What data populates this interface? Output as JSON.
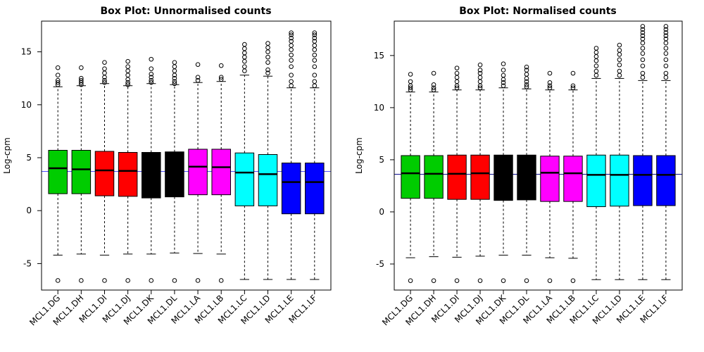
{
  "chart_data": [
    {
      "type": "boxplot",
      "title": "Box Plot: Unnormalised counts",
      "ylabel": "Log-cpm",
      "yticks": [
        -5,
        0,
        5,
        10,
        15
      ],
      "ylim": [
        -7.5,
        17.9
      ],
      "reference_line": 3.7,
      "reference_color": "#4d4dff",
      "categories": [
        "MCL1.DG",
        "MCL1.DH",
        "MCL1.DI",
        "MCL1.DJ",
        "MCL1.DK",
        "MCL1.DL",
        "MCL1.LA",
        "MCL1.LB",
        "MCL1.LC",
        "MCL1.LD",
        "MCL1.LE",
        "MCL1.LF"
      ],
      "colors": [
        "#00cc00",
        "#00cc00",
        "#ff0000",
        "#ff0000",
        "#000000",
        "#000000",
        "#ff00ff",
        "#ff00ff",
        "#00ffff",
        "#00ffff",
        "#0000ff",
        "#0000ff"
      ],
      "median_colors": [
        "#000000",
        "#000000",
        "#000000",
        "#000000",
        "#000000",
        "#000000",
        "#000000",
        "#000000",
        "#000000",
        "#000000",
        "#000000",
        "#000000"
      ],
      "boxes": [
        {
          "lower_whisker": -4.2,
          "q1": 1.6,
          "median": 4.0,
          "q3": 5.7,
          "upper_whisker": 11.7,
          "outliers": [
            -6.6,
            11.9,
            12.1,
            12.3,
            12.8,
            13.5
          ]
        },
        {
          "lower_whisker": -4.1,
          "q1": 1.6,
          "median": 3.9,
          "q3": 5.7,
          "upper_whisker": 11.8,
          "outliers": [
            -6.6,
            11.9,
            12.1,
            12.3,
            12.5,
            13.5
          ]
        },
        {
          "lower_whisker": -4.2,
          "q1": 1.4,
          "median": 3.8,
          "q3": 5.6,
          "upper_whisker": 12.0,
          "outliers": [
            -6.6,
            12.1,
            12.3,
            12.6,
            13.0,
            13.4,
            14.0
          ]
        },
        {
          "lower_whisker": -4.1,
          "q1": 1.35,
          "median": 3.75,
          "q3": 5.5,
          "upper_whisker": 11.8,
          "outliers": [
            -6.6,
            11.9,
            12.1,
            12.4,
            12.8,
            13.2,
            13.6,
            14.1
          ]
        },
        {
          "lower_whisker": -4.1,
          "q1": 1.2,
          "median": 3.6,
          "q3": 5.5,
          "upper_whisker": 12.0,
          "outliers": [
            -6.6,
            12.1,
            12.3,
            12.6,
            12.9,
            13.4,
            14.3
          ]
        },
        {
          "lower_whisker": -4.0,
          "q1": 1.3,
          "median": 3.65,
          "q3": 5.55,
          "upper_whisker": 11.9,
          "outliers": [
            -6.6,
            12.0,
            12.2,
            12.5,
            12.8,
            13.2,
            13.6,
            14.0
          ]
        },
        {
          "lower_whisker": -4.05,
          "q1": 1.5,
          "median": 4.15,
          "q3": 5.8,
          "upper_whisker": 12.1,
          "outliers": [
            -6.6,
            12.3,
            12.6,
            13.8
          ]
        },
        {
          "lower_whisker": -4.1,
          "q1": 1.5,
          "median": 4.1,
          "q3": 5.8,
          "upper_whisker": 12.2,
          "outliers": [
            -6.6,
            12.4,
            12.6,
            13.7
          ]
        },
        {
          "lower_whisker": -6.5,
          "q1": 0.45,
          "median": 3.6,
          "q3": 5.45,
          "upper_whisker": 12.8,
          "outliers": [
            13.2,
            13.6,
            14.1,
            14.5,
            14.9,
            15.3,
            15.7
          ]
        },
        {
          "lower_whisker": -6.5,
          "q1": 0.45,
          "median": 3.45,
          "q3": 5.3,
          "upper_whisker": 12.7,
          "outliers": [
            13.0,
            13.3,
            14.0,
            14.5,
            15.0,
            15.4,
            15.8
          ]
        },
        {
          "lower_whisker": -6.5,
          "q1": -0.3,
          "median": 2.7,
          "q3": 4.5,
          "upper_whisker": 11.6,
          "outliers": [
            11.8,
            12.2,
            12.8,
            13.6,
            14.2,
            14.7,
            15.2,
            15.6,
            16.0,
            16.3,
            16.6,
            16.8
          ]
        },
        {
          "lower_whisker": -6.5,
          "q1": -0.3,
          "median": 2.7,
          "q3": 4.5,
          "upper_whisker": 11.6,
          "outliers": [
            11.8,
            12.2,
            12.8,
            13.6,
            14.2,
            14.7,
            15.2,
            15.6,
            16.0,
            16.3,
            16.6,
            16.8
          ]
        }
      ]
    },
    {
      "type": "boxplot",
      "title": "Box Plot: Normalised counts",
      "ylabel": "Log-cpm",
      "yticks": [
        -5,
        0,
        5,
        10,
        15
      ],
      "ylim": [
        -7.5,
        18.3
      ],
      "reference_line": 3.6,
      "reference_color": "#00008b",
      "categories": [
        "MCL1.DG",
        "MCL1.DH",
        "MCL1.DI",
        "MCL1.DJ",
        "MCL1.DK",
        "MCL1.DL",
        "MCL1.LA",
        "MCL1.LB",
        "MCL1.LC",
        "MCL1.LD",
        "MCL1.LE",
        "MCL1.LF"
      ],
      "colors": [
        "#00cc00",
        "#00cc00",
        "#ff0000",
        "#ff0000",
        "#000000",
        "#000000",
        "#ff00ff",
        "#ff00ff",
        "#00ffff",
        "#00ffff",
        "#0000ff",
        "#0000ff"
      ],
      "median_colors": [
        "#000000",
        "#000000",
        "#000000",
        "#000000",
        "#000000",
        "#000000",
        "#000000",
        "#000000",
        "#000000",
        "#000000",
        "#000000",
        "#000000"
      ],
      "boxes": [
        {
          "lower_whisker": -4.4,
          "q1": 1.3,
          "median": 3.7,
          "q3": 5.4,
          "upper_whisker": 11.5,
          "outliers": [
            -6.6,
            11.7,
            11.9,
            12.1,
            12.5,
            13.2
          ]
        },
        {
          "lower_whisker": -4.3,
          "q1": 1.3,
          "median": 3.65,
          "q3": 5.4,
          "upper_whisker": 11.5,
          "outliers": [
            -6.6,
            11.7,
            11.9,
            12.2,
            13.3
          ]
        },
        {
          "lower_whisker": -4.35,
          "q1": 1.2,
          "median": 3.65,
          "q3": 5.45,
          "upper_whisker": 11.7,
          "outliers": [
            -6.6,
            11.9,
            12.1,
            12.5,
            12.9,
            13.3,
            13.8
          ]
        },
        {
          "lower_whisker": -4.25,
          "q1": 1.2,
          "median": 3.7,
          "q3": 5.45,
          "upper_whisker": 11.7,
          "outliers": [
            -6.6,
            11.9,
            12.1,
            12.5,
            12.9,
            13.3,
            13.6,
            14.1
          ]
        },
        {
          "lower_whisker": -4.15,
          "q1": 1.1,
          "median": 3.6,
          "q3": 5.45,
          "upper_whisker": 11.9,
          "outliers": [
            -6.6,
            12.1,
            12.4,
            12.7,
            13.1,
            13.6,
            14.2
          ]
        },
        {
          "lower_whisker": -4.15,
          "q1": 1.15,
          "median": 3.65,
          "q3": 5.45,
          "upper_whisker": 11.8,
          "outliers": [
            -6.6,
            12.0,
            12.2,
            12.5,
            12.8,
            13.2,
            13.6,
            13.9
          ]
        },
        {
          "lower_whisker": -4.4,
          "q1": 1.0,
          "median": 3.75,
          "q3": 5.35,
          "upper_whisker": 11.7,
          "outliers": [
            -6.6,
            11.9,
            12.1,
            12.4,
            13.3
          ]
        },
        {
          "lower_whisker": -4.45,
          "q1": 1.0,
          "median": 3.7,
          "q3": 5.35,
          "upper_whisker": 11.7,
          "outliers": [
            -6.6,
            11.9,
            12.1,
            13.3
          ]
        },
        {
          "lower_whisker": -6.5,
          "q1": 0.5,
          "median": 3.55,
          "q3": 5.45,
          "upper_whisker": 12.8,
          "outliers": [
            13.1,
            13.5,
            14.0,
            14.5,
            14.9,
            15.3,
            15.7
          ]
        },
        {
          "lower_whisker": -6.5,
          "q1": 0.55,
          "median": 3.55,
          "q3": 5.45,
          "upper_whisker": 12.8,
          "outliers": [
            13.1,
            13.5,
            14.1,
            14.6,
            15.1,
            15.5,
            16.0
          ]
        },
        {
          "lower_whisker": -6.5,
          "q1": 0.6,
          "median": 3.55,
          "q3": 5.4,
          "upper_whisker": 12.6,
          "outliers": [
            12.9,
            13.3,
            14.0,
            14.6,
            15.2,
            15.7,
            16.2,
            16.6,
            16.9,
            17.2,
            17.5,
            17.8
          ]
        },
        {
          "lower_whisker": -6.5,
          "q1": 0.6,
          "median": 3.55,
          "q3": 5.4,
          "upper_whisker": 12.6,
          "outliers": [
            12.9,
            13.3,
            14.0,
            14.6,
            15.2,
            15.7,
            16.2,
            16.6,
            16.9,
            17.2,
            17.5,
            17.8
          ]
        }
      ]
    }
  ]
}
